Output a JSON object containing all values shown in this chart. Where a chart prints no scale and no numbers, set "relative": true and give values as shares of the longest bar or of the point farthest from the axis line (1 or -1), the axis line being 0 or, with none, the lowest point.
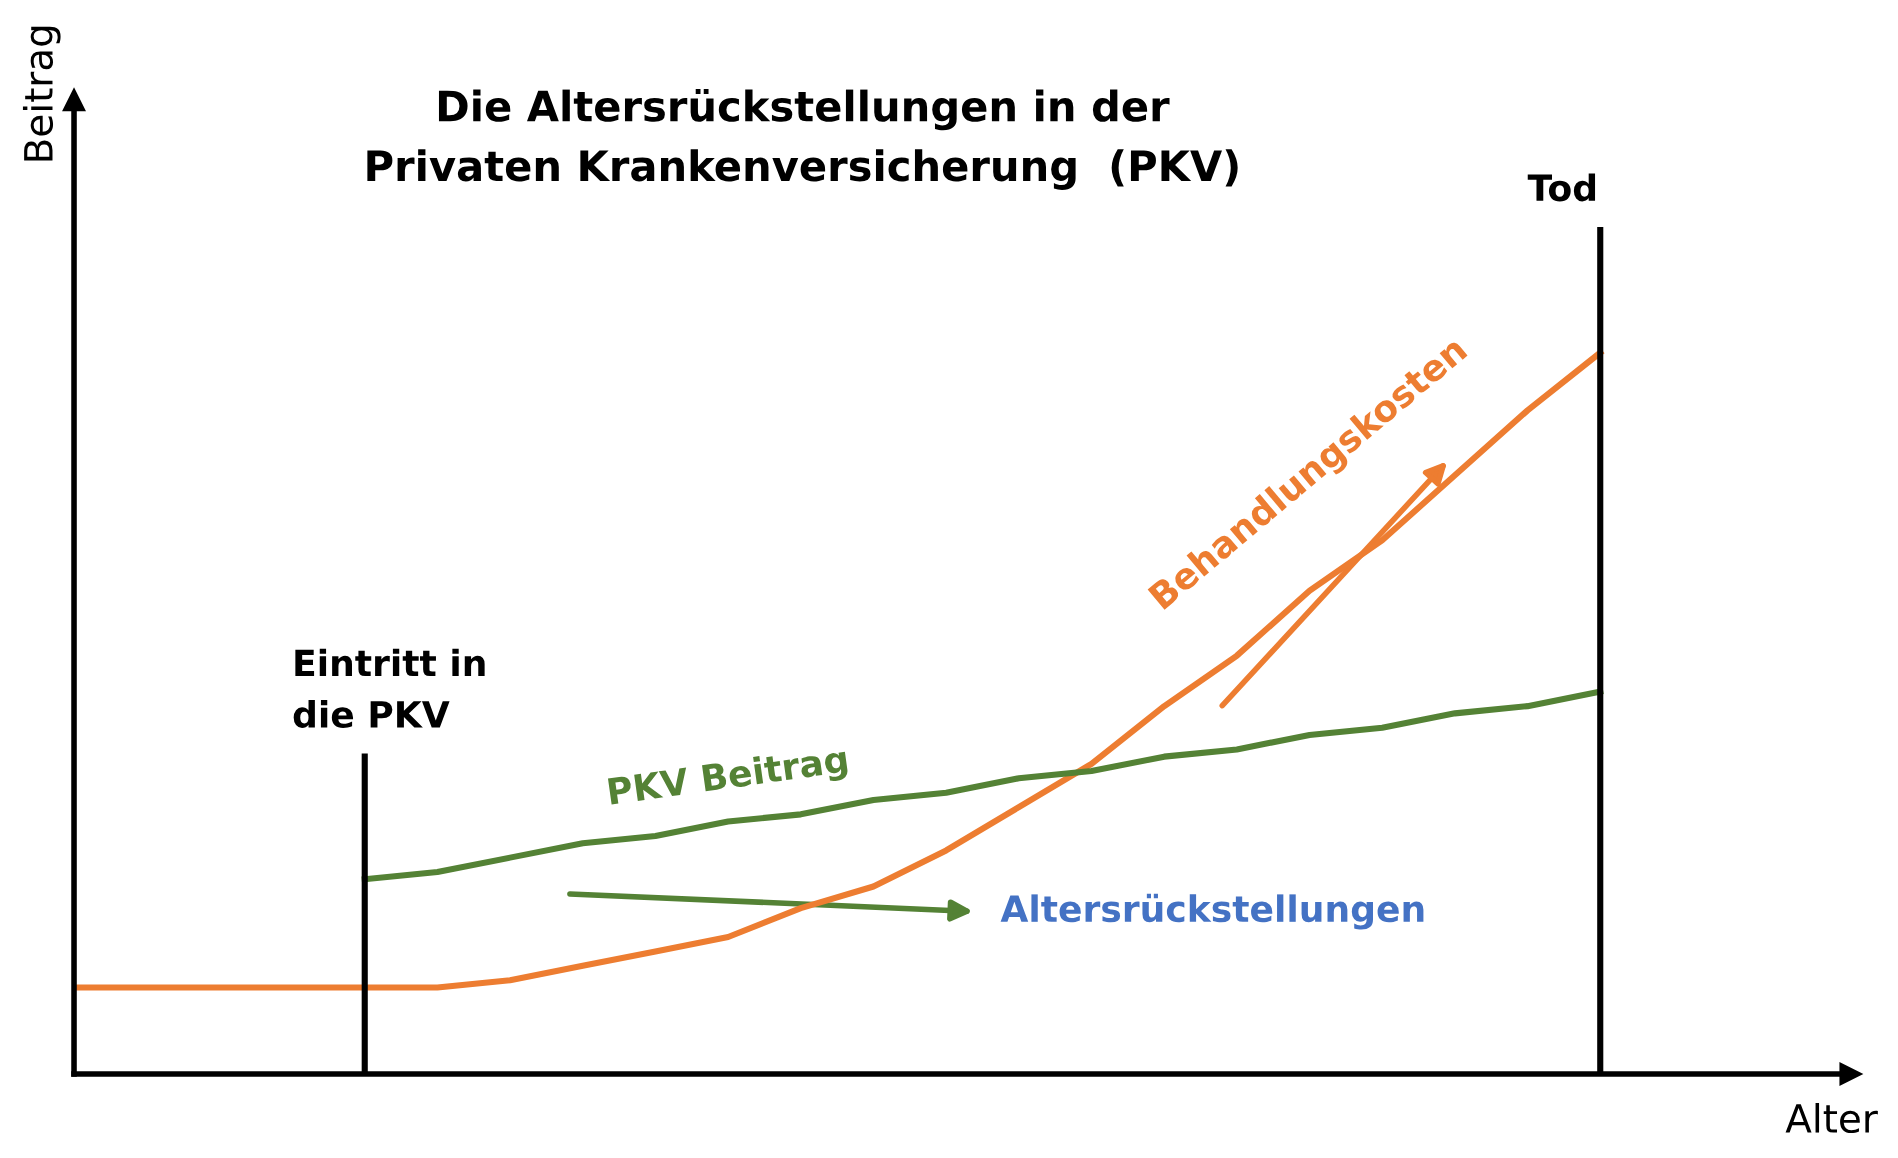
{
  "chart_data": {
    "type": "line",
    "relative": true,
    "title": "Die Altersrückstellungen in der\nPrivaten Krankenversicherung  (PKV)",
    "xlabel": "Alter",
    "ylabel": "Beitrag",
    "legend": false,
    "marker": "none",
    "line_style": "solid",
    "categories": [
      null,
      null,
      null,
      null,
      null,
      null,
      null,
      null,
      null,
      null,
      null,
      null,
      null,
      null,
      null,
      null,
      null,
      null,
      null,
      null,
      null,
      null
    ],
    "series": [
      {
        "name": "Behandlungskosten",
        "color": "#ed7d31",
        "values": [
          0.12,
          0.12,
          0.12,
          0.12,
          0.12,
          0.12,
          0.13,
          0.15,
          0.17,
          0.19,
          0.23,
          0.26,
          0.31,
          0.37,
          0.43,
          0.51,
          0.58,
          0.67,
          0.74,
          0.83,
          0.92,
          1.0
        ]
      },
      {
        "name": "PKV Beitrag",
        "color": "#548235",
        "values": [
          null,
          null,
          null,
          null,
          0.27,
          0.28,
          0.3,
          0.32,
          0.33,
          0.35,
          0.36,
          0.38,
          0.39,
          0.41,
          0.42,
          0.44,
          0.45,
          0.47,
          0.48,
          0.5,
          0.51,
          0.53
        ]
      }
    ],
    "annotations": [
      "Eintritt in\ndie PKV",
      "Tod",
      "Altersrückstellungen"
    ]
  }
}
